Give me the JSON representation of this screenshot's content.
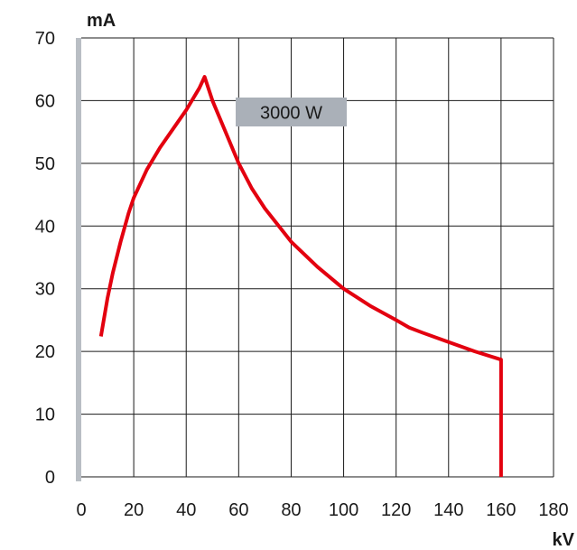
{
  "chart_data": {
    "type": "line",
    "ylabel": "mA",
    "xlabel": "kV",
    "xlim": [
      0,
      180
    ],
    "ylim": [
      0,
      70
    ],
    "x_ticks": [
      "0",
      "20",
      "40",
      "60",
      "80",
      "100",
      "120",
      "140",
      "160",
      "180"
    ],
    "y_ticks": [
      "0",
      "10",
      "20",
      "30",
      "40",
      "50",
      "60",
      "70"
    ],
    "grid": true,
    "annotation": "3000 W",
    "series": [
      {
        "color": "#e3000f",
        "points": [
          [
            7.5,
            22.4
          ],
          [
            10,
            28.5
          ],
          [
            12,
            32.5
          ],
          [
            15,
            37.5
          ],
          [
            18,
            42
          ],
          [
            20,
            44.5
          ],
          [
            25,
            49
          ],
          [
            30,
            52.5
          ],
          [
            35,
            55.5
          ],
          [
            40,
            58.5
          ],
          [
            45,
            62
          ],
          [
            47,
            63.8
          ],
          [
            50,
            60
          ],
          [
            55,
            55
          ],
          [
            60,
            50
          ],
          [
            65,
            46
          ],
          [
            70,
            42.8
          ],
          [
            80,
            37.5
          ],
          [
            90,
            33.5
          ],
          [
            100,
            30
          ],
          [
            110,
            27.3
          ],
          [
            120,
            25
          ],
          [
            125,
            23.8
          ],
          [
            130,
            23
          ],
          [
            140,
            21.5
          ],
          [
            150,
            20
          ],
          [
            160,
            18.7
          ],
          [
            160,
            0
          ]
        ]
      }
    ]
  },
  "colors": {
    "curve": "#e3000f",
    "grid": "#1a1a1a",
    "axis_band": "#b9bec4",
    "badge_bg": "#aab0b8"
  }
}
